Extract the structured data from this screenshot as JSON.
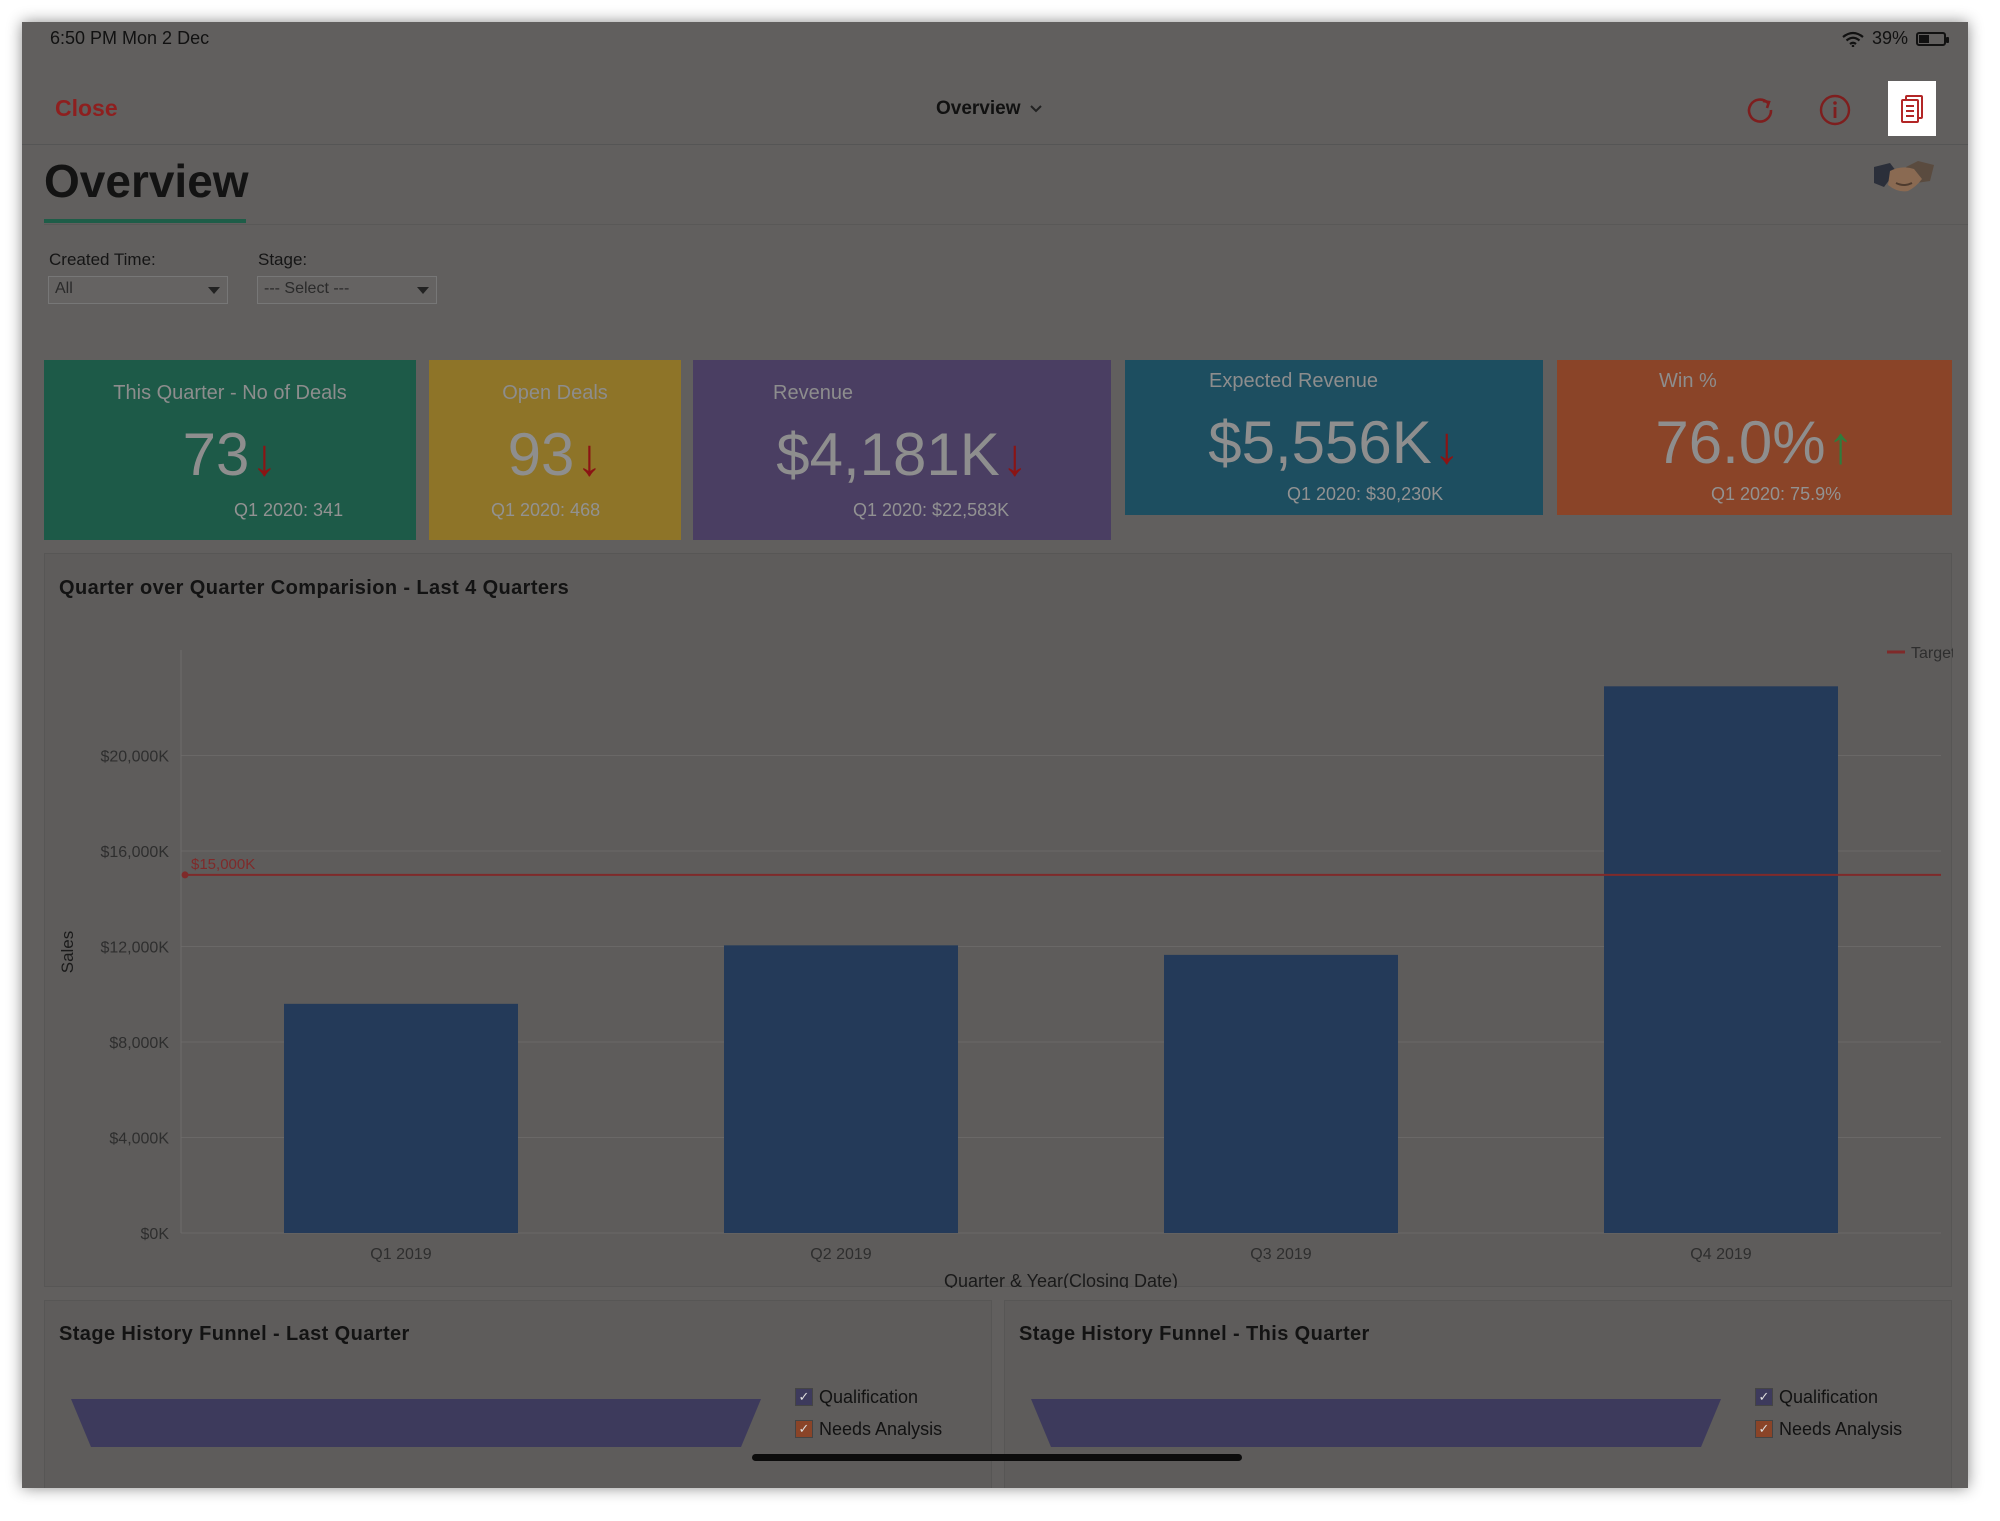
{
  "status_bar": {
    "time": "6:50 PM  Mon 2 Dec",
    "battery": "39%"
  },
  "nav": {
    "close_label": "Close",
    "title": "Overview"
  },
  "page": {
    "title": "Overview"
  },
  "filters": {
    "created_time_label": "Created Time:",
    "created_time_value": "All",
    "stage_label": "Stage:",
    "stage_value": "--- Select ---"
  },
  "kpis": [
    {
      "label": "This Quarter - No of Deals",
      "value": "73",
      "trend": "↓",
      "previous": "Q1 2020: 341",
      "color": "#1d5a48"
    },
    {
      "label": "Open Deals",
      "value": "93",
      "trend": "↓",
      "previous": "Q1 2020: 468",
      "color": "#8e7428"
    },
    {
      "label": "Revenue",
      "value": "$4,181K",
      "trend": "↓",
      "previous": "Q1 2020: $22,583K",
      "color": "#4a3e62"
    },
    {
      "label": "Expected Revenue",
      "value": "$5,556K",
      "trend": "↓",
      "previous": "Q1 2020: $30,230K",
      "color": "#1d4e60"
    },
    {
      "label": "Win %",
      "value": "76.0%",
      "trend": "↑",
      "previous": "Q1 2020: 75.9%",
      "color": "#8a4428"
    }
  ],
  "qoq_chart": {
    "title": "Quarter over Quarter Comparision - Last 4 Quarters",
    "chart_data": {
      "type": "bar",
      "categories": [
        "Q1 2019",
        "Q2 2019",
        "Q3 2019",
        "Q4 2019"
      ],
      "values": [
        9600,
        12050,
        11650,
        22900
      ],
      "xlabel": "Quarter & Year(Closing Date)",
      "ylabel": "Sales",
      "ylim": [
        0,
        23500
      ],
      "yticks": [
        0,
        4000,
        8000,
        12000,
        16000,
        20000
      ],
      "ytick_labels": [
        "$0K",
        "$4,000K",
        "$8,000K",
        "$12,000K",
        "$16,000K",
        "$20,000K"
      ],
      "target": {
        "name": "Target",
        "value": 15000,
        "label": "$15,000K"
      },
      "bar_color": "#243a59",
      "target_color": "#7f2a2a",
      "legend_position": "top-right",
      "grid": true
    }
  },
  "funnel_last": {
    "title": "Stage History Funnel - Last Quarter",
    "legend": [
      "Qualification",
      "Needs Analysis"
    ]
  },
  "funnel_this": {
    "title": "Stage History Funnel - This Quarter",
    "legend": [
      "Qualification",
      "Needs Analysis"
    ]
  },
  "colors": {
    "qualification": "#3d3a5c",
    "needs_analysis": "#8a4428"
  }
}
